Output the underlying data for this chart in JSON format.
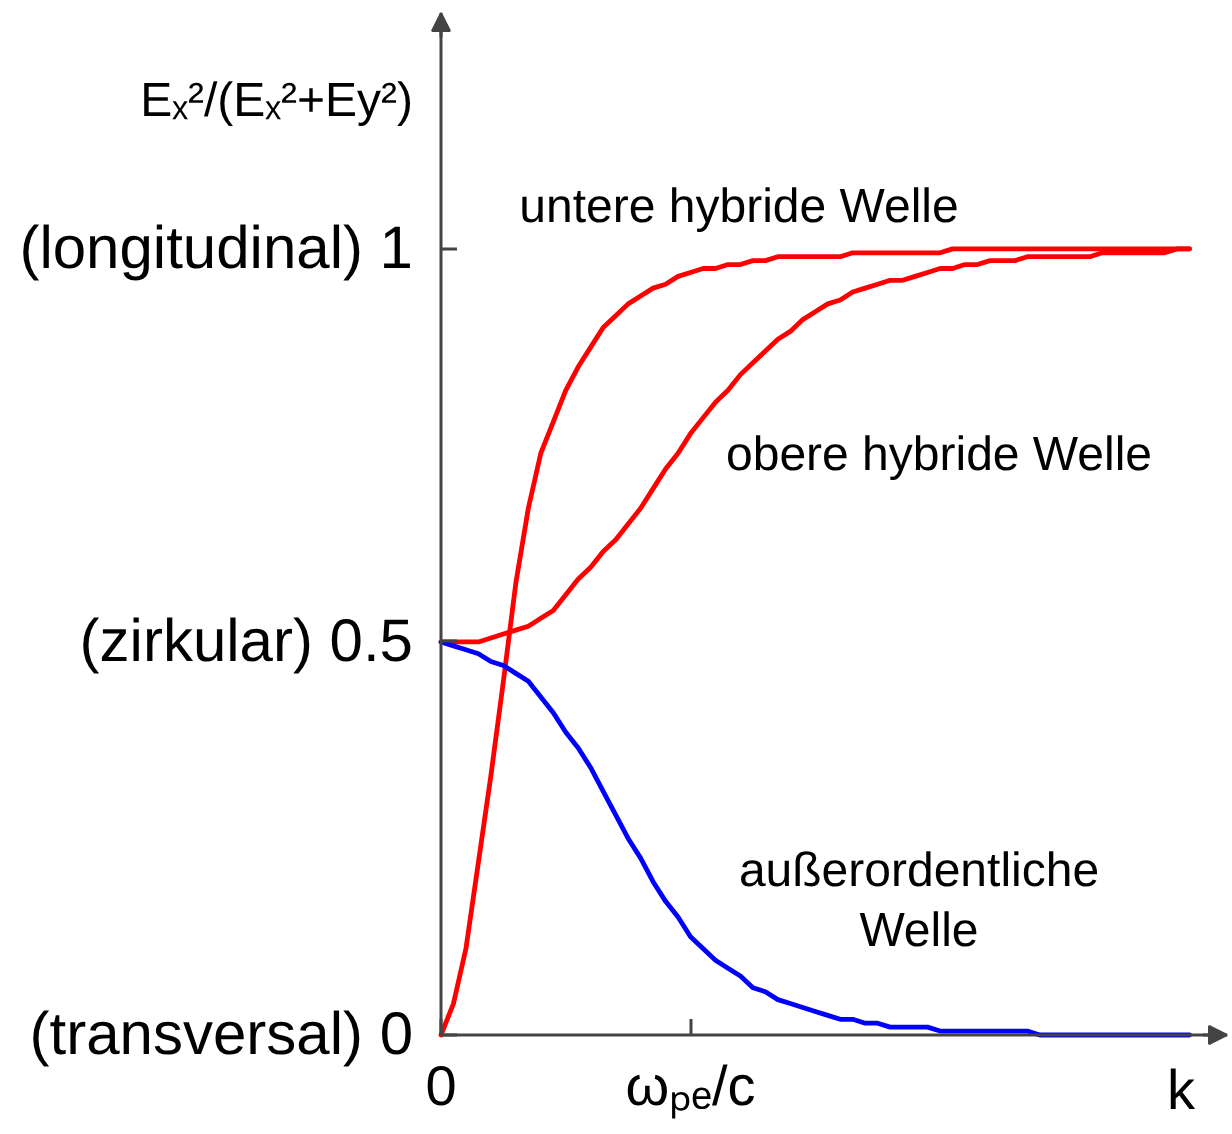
{
  "chart_data": {
    "type": "line",
    "xlabel": "k",
    "ylabel": "Eₓ²/(Eₓ²+Ey²)",
    "categories": [
      "0",
      null,
      null,
      null,
      null,
      null,
      null,
      null,
      null,
      null,
      null,
      null,
      null,
      null,
      null,
      null,
      null,
      null,
      null,
      null,
      "ωₚₑ/c",
      null,
      null,
      null,
      null,
      null,
      null,
      null,
      null,
      null,
      null,
      null,
      null,
      null,
      null,
      null,
      null,
      null,
      null,
      null,
      null,
      null,
      null,
      null,
      null,
      null,
      null,
      null,
      null,
      null,
      null,
      null,
      null,
      null,
      null,
      null,
      null,
      null,
      null,
      null,
      null,
      null,
      null,
      null
    ],
    "ylim": [
      0,
      1.3
    ],
    "yticks": [
      {
        "value": 0,
        "label": "(transversal) 0"
      },
      {
        "value": 0.5,
        "label": "(zirkular) 0.5"
      },
      {
        "value": 1,
        "label": "(longitudinal) 1"
      }
    ],
    "grid": false,
    "line_style": "solid",
    "series": [
      {
        "name": "untere hybride Welle",
        "color": "#ff0000",
        "values": [
          0,
          0.04,
          0.11,
          0.22,
          0.33,
          0.45,
          0.575,
          0.67,
          0.74,
          0.78,
          0.82,
          0.85,
          0.875,
          0.9,
          0.915,
          0.93,
          0.94,
          0.95,
          0.955,
          0.965,
          0.97,
          0.975,
          0.975,
          0.98,
          0.98,
          0.985,
          0.985,
          0.99,
          0.99,
          0.99,
          0.99,
          0.99,
          0.99,
          0.995,
          0.995,
          0.995,
          0.995,
          0.995,
          0.995,
          0.995,
          0.995,
          1.0,
          1.0,
          1.0,
          1.0,
          1.0,
          1.0,
          1.0,
          1.0,
          1.0,
          1.0,
          1.0,
          1.0,
          1.0,
          1.0,
          1.0,
          1.0,
          1.0,
          1.0,
          1.0,
          1.0,
          null,
          null,
          null
        ]
      },
      {
        "name": "obere hybride Welle",
        "color": "#ff0000",
        "values": [
          0.5,
          0.5,
          0.5,
          0.5,
          0.505,
          0.51,
          0.515,
          0.52,
          0.53,
          0.54,
          0.56,
          0.58,
          0.595,
          0.615,
          0.63,
          0.65,
          0.67,
          0.695,
          0.72,
          0.74,
          0.765,
          0.785,
          0.805,
          0.82,
          0.84,
          0.855,
          0.87,
          0.885,
          0.895,
          0.91,
          0.92,
          0.93,
          0.935,
          0.945,
          0.95,
          0.955,
          0.96,
          0.96,
          0.965,
          0.97,
          0.975,
          0.975,
          0.98,
          0.98,
          0.985,
          0.985,
          0.985,
          0.99,
          0.99,
          0.99,
          0.99,
          0.99,
          0.99,
          0.995,
          0.995,
          0.995,
          0.995,
          0.995,
          0.995,
          1.0,
          1.0,
          null,
          null,
          null
        ]
      },
      {
        "name": "außerordentliche Welle",
        "color": "#0000ff",
        "values": [
          0.5,
          0.495,
          0.49,
          0.485,
          0.475,
          0.47,
          0.46,
          0.45,
          0.43,
          0.41,
          0.385,
          0.365,
          0.34,
          0.31,
          0.28,
          0.25,
          0.225,
          0.195,
          0.17,
          0.15,
          0.125,
          0.11,
          0.095,
          0.085,
          0.075,
          0.06,
          0.055,
          0.045,
          0.04,
          0.035,
          0.03,
          0.025,
          0.02,
          0.02,
          0.015,
          0.015,
          0.01,
          0.01,
          0.01,
          0.01,
          0.005,
          0.005,
          0.005,
          0.005,
          0.005,
          0.005,
          0.005,
          0.005,
          0.0,
          0.0,
          0.0,
          0.0,
          0.0,
          0.0,
          0.0,
          0.0,
          0.0,
          0.0,
          0.0,
          0.0,
          0.0,
          null,
          null,
          null
        ]
      }
    ]
  }
}
